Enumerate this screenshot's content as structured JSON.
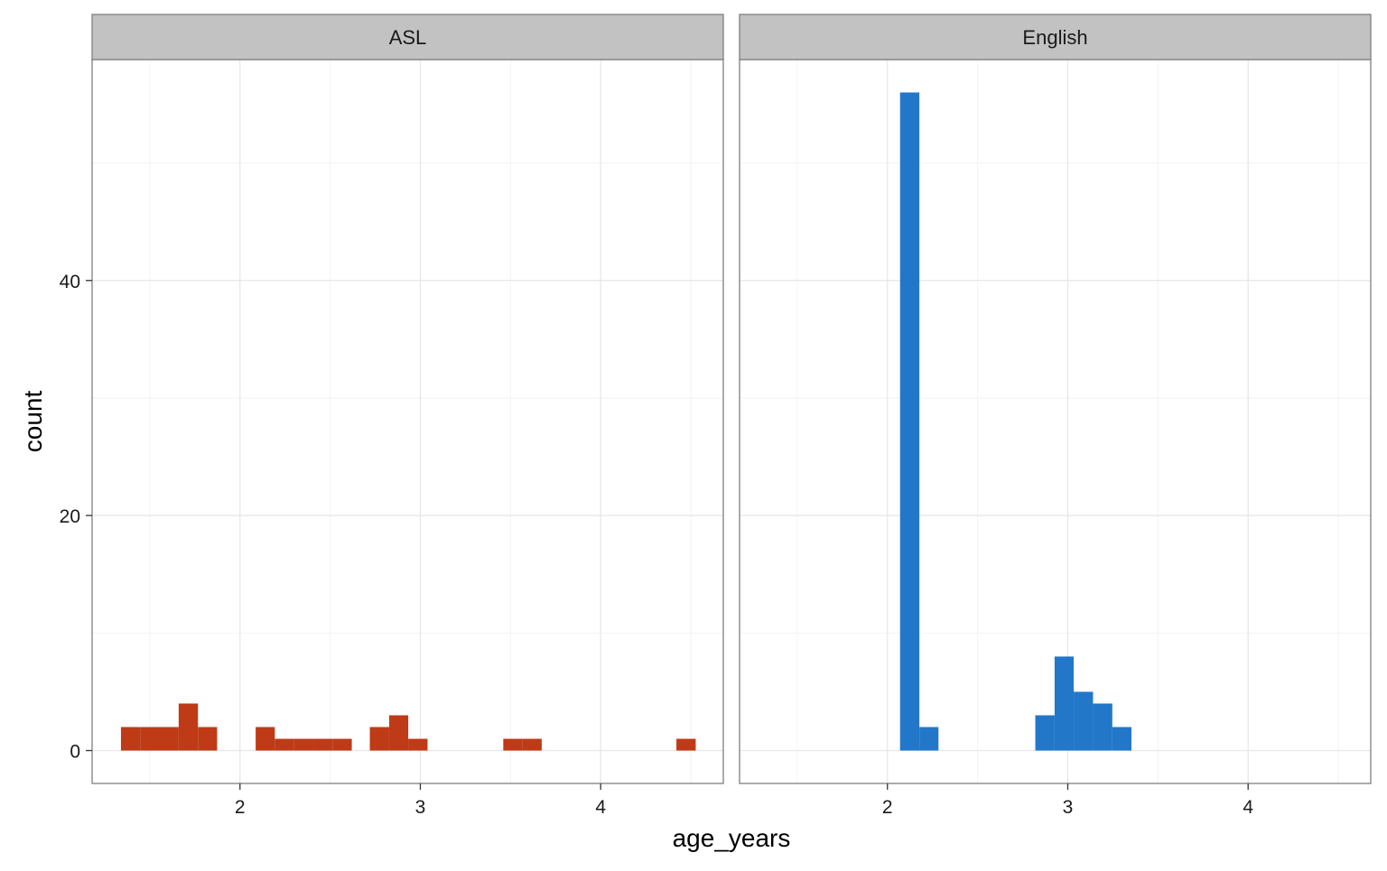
{
  "chart_data": {
    "type": "bar",
    "xlabel": "age_years",
    "ylabel": "count",
    "xlim": [
      1.18,
      4.68
    ],
    "ylim": [
      -2.8,
      58.8
    ],
    "x_ticks": [
      2,
      3,
      4
    ],
    "x_tick_labels": [
      "2",
      "3",
      "4"
    ],
    "x_minor_gridlines": [
      1.5,
      2.5,
      3.5,
      4.5
    ],
    "y_ticks": [
      0,
      20,
      40
    ],
    "y_tick_labels": [
      "0",
      "20",
      "40"
    ],
    "y_minor_gridlines": [
      10,
      30,
      50
    ],
    "grid": true,
    "legend": "none",
    "bin_width": 0.1067,
    "panels": [
      {
        "strip_label": "ASL",
        "color": "#BF3A17",
        "bins": [
          {
            "x0": 1.34,
            "x1": 1.447,
            "count": 2
          },
          {
            "x0": 1.447,
            "x1": 1.553,
            "count": 2
          },
          {
            "x0": 1.553,
            "x1": 1.66,
            "count": 2
          },
          {
            "x0": 1.66,
            "x1": 1.767,
            "count": 4
          },
          {
            "x0": 1.767,
            "x1": 1.873,
            "count": 2
          },
          {
            "x0": 2.087,
            "x1": 2.193,
            "count": 2
          },
          {
            "x0": 2.193,
            "x1": 2.3,
            "count": 1
          },
          {
            "x0": 2.3,
            "x1": 2.407,
            "count": 1
          },
          {
            "x0": 2.407,
            "x1": 2.513,
            "count": 1
          },
          {
            "x0": 2.513,
            "x1": 2.62,
            "count": 1
          },
          {
            "x0": 2.72,
            "x1": 2.827,
            "count": 2
          },
          {
            "x0": 2.827,
            "x1": 2.933,
            "count": 3
          },
          {
            "x0": 2.933,
            "x1": 3.04,
            "count": 1
          },
          {
            "x0": 3.46,
            "x1": 3.567,
            "count": 1
          },
          {
            "x0": 3.567,
            "x1": 3.673,
            "count": 1
          },
          {
            "x0": 4.42,
            "x1": 4.527,
            "count": 1
          }
        ]
      },
      {
        "strip_label": "English",
        "color": "#2277C9",
        "bins": [
          {
            "x0": 2.07,
            "x1": 2.177,
            "count": 56
          },
          {
            "x0": 2.177,
            "x1": 2.283,
            "count": 2
          },
          {
            "x0": 2.82,
            "x1": 2.927,
            "count": 3
          },
          {
            "x0": 2.927,
            "x1": 3.033,
            "count": 8
          },
          {
            "x0": 3.033,
            "x1": 3.14,
            "count": 5
          },
          {
            "x0": 3.14,
            "x1": 3.247,
            "count": 4
          },
          {
            "x0": 3.247,
            "x1": 3.353,
            "count": 2
          }
        ]
      }
    ]
  }
}
